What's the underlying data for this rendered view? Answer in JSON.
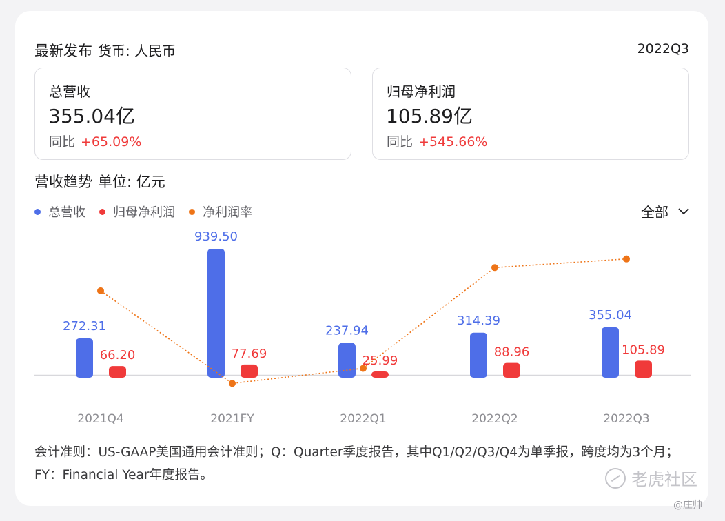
{
  "header": {
    "title": "最新发布",
    "currency": "货币: 人民币",
    "period": "2022Q3"
  },
  "metrics": [
    {
      "label": "总营收",
      "value": "355.04亿",
      "yoy_label": "同比",
      "yoy": "+65.09%"
    },
    {
      "label": "归母净利润",
      "value": "105.89亿",
      "yoy_label": "同比",
      "yoy": "+545.66%"
    }
  ],
  "trend": {
    "title": "营收趋势",
    "unit": "单位: 亿元",
    "filter": "全部",
    "legend": [
      {
        "label": "总营收",
        "color": "#4e6ee8"
      },
      {
        "label": "归母净利润",
        "color": "#f03a3a"
      },
      {
        "label": "净利润率",
        "color": "#ee7417"
      }
    ]
  },
  "chart_data": {
    "type": "bar",
    "categories": [
      "2021Q4",
      "2021FY",
      "2022Q1",
      "2022Q2",
      "2022Q3"
    ],
    "series": [
      {
        "name": "总营收",
        "type": "bar",
        "color": "#4e6ee8",
        "values": [
          272.31,
          939.5,
          237.94,
          314.39,
          355.04
        ],
        "labels": [
          "272.31",
          "939.50",
          "237.94",
          "314.39",
          "355.04"
        ]
      },
      {
        "name": "归母净利润",
        "type": "bar",
        "color": "#f03a3a",
        "values": [
          66.2,
          77.69,
          25.99,
          88.96,
          105.89
        ],
        "labels": [
          "66.20",
          "77.69",
          "25.99",
          "88.96",
          "105.89"
        ]
      },
      {
        "name": "净利润率",
        "type": "line",
        "color": "#ee7417",
        "values": [
          24.3,
          8.3,
          10.9,
          28.3,
          29.8
        ]
      }
    ]
  },
  "footnote": "会计准则：US-GAAP美国通用会计准则；Q：Quarter季度报告，其中Q1/Q2/Q3/Q4为单季报，跨度均为3个月；FY：Financial Year年度报告。",
  "watermark": {
    "logo": "老虎社区",
    "author": "@庄帅"
  }
}
